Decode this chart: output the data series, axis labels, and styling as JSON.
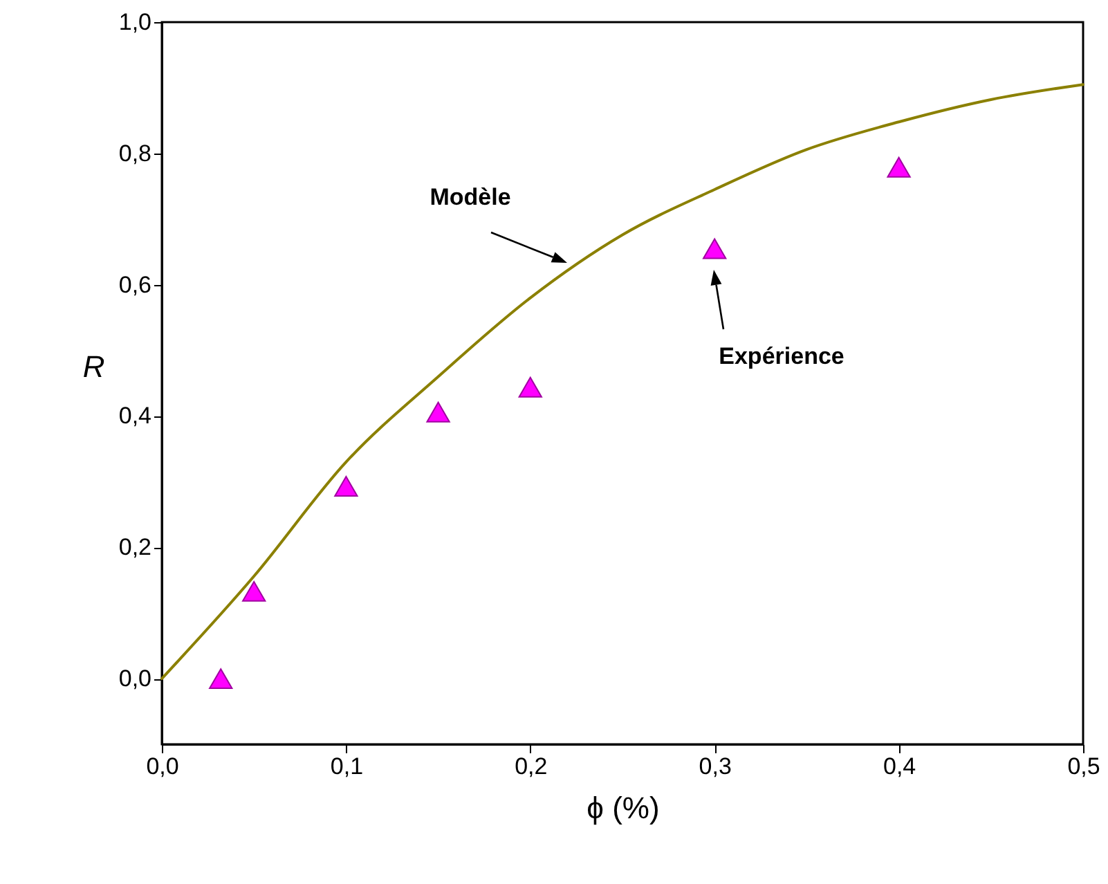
{
  "chart_data": {
    "type": "scatter",
    "xlabel": "ϕ (%)",
    "ylabel": "R",
    "xlim": [
      0,
      0.5
    ],
    "ylim": [
      -0.1,
      1.0
    ],
    "xticks": [
      {
        "value": 0,
        "label": "0,0"
      },
      {
        "value": 0.1,
        "label": "0,1"
      },
      {
        "value": 0.2,
        "label": "0,2"
      },
      {
        "value": 0.3,
        "label": "0,3"
      },
      {
        "value": 0.4,
        "label": "0,4"
      },
      {
        "value": 0.5,
        "label": "0,5"
      }
    ],
    "yticks": [
      {
        "value": 0,
        "label": "0,0"
      },
      {
        "value": 0.2,
        "label": "0,2"
      },
      {
        "value": 0.4,
        "label": "0,4"
      },
      {
        "value": 0.6,
        "label": "0,6"
      },
      {
        "value": 0.8,
        "label": "0,8"
      },
      {
        "value": 1.0,
        "label": "1,0"
      }
    ],
    "grid": false,
    "series": [
      {
        "type": "line",
        "color": "#8b8000",
        "line_style": "solid",
        "marker": "none",
        "x": [
          0,
          0.05,
          0.1,
          0.15,
          0.2,
          0.25,
          0.3,
          0.35,
          0.4,
          0.45,
          0.5
        ],
        "values": [
          0,
          0.156,
          0.33,
          0.46,
          0.58,
          0.676,
          0.745,
          0.806,
          0.848,
          0.882,
          0.905
        ]
      },
      {
        "color": "#ff00ff",
        "marker": "triangle",
        "x": [
          0.032,
          0.05,
          0.1,
          0.15,
          0.2,
          0.3,
          0.4
        ],
        "values": [
          0.0,
          0.133,
          0.293,
          0.406,
          0.444,
          0.655,
          0.779
        ]
      }
    ],
    "annotations": [
      "Modèle",
      "Expérience"
    ]
  }
}
